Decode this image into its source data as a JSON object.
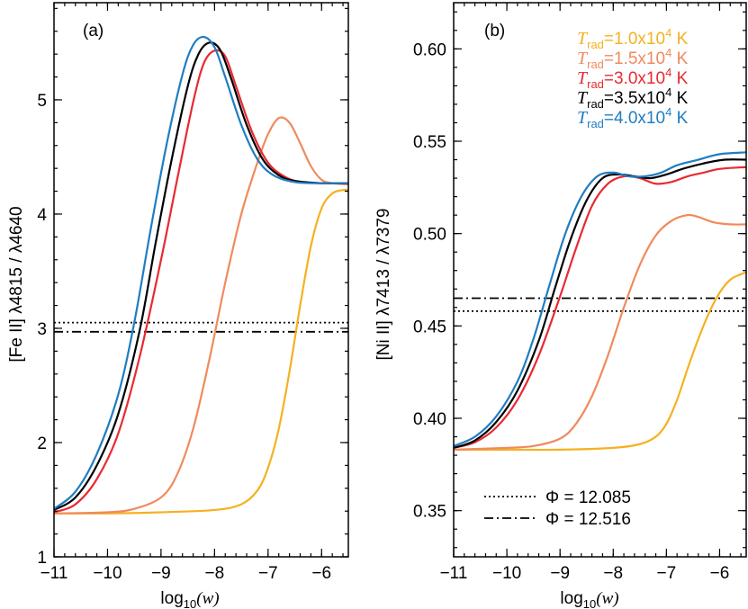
{
  "chart_data": [
    {
      "type": "line",
      "panel_label": "(a)",
      "xlabel_prefix": "log",
      "xlabel_sub": "10",
      "xlabel_arg": "(w)",
      "ylabel": "[Fe II] λ4815 / λ4640",
      "xlim": [
        -11,
        -5.5
      ],
      "ylim": [
        1,
        5.85
      ],
      "xticks": [
        -11,
        -10,
        -9,
        -8,
        -7,
        -6
      ],
      "xtick_labels": [
        "−11",
        "−10",
        "−9",
        "−8",
        "−7",
        "−6"
      ],
      "yticks": [
        1,
        2,
        3,
        4,
        5
      ],
      "ytick_labels": [
        "1",
        "2",
        "3",
        "4",
        "5"
      ],
      "hlines": [
        {
          "style": "dotted",
          "y": 3.05
        },
        {
          "style": "dashdot",
          "y": 2.97
        }
      ],
      "series": [
        {
          "color": "#f5b120",
          "points": [
            [
              -11,
              1.38
            ],
            [
              -10,
              1.38
            ],
            [
              -9,
              1.39
            ],
            [
              -8,
              1.41
            ],
            [
              -7.5,
              1.46
            ],
            [
              -7.2,
              1.58
            ],
            [
              -7,
              1.78
            ],
            [
              -6.8,
              2.12
            ],
            [
              -6.6,
              2.62
            ],
            [
              -6.4,
              3.2
            ],
            [
              -6.2,
              3.72
            ],
            [
              -6,
              4.05
            ],
            [
              -5.8,
              4.18
            ],
            [
              -5.6,
              4.21
            ],
            [
              -5.5,
              4.21
            ]
          ]
        },
        {
          "color": "#f08a5d",
          "points": [
            [
              -11,
              1.38
            ],
            [
              -10,
              1.39
            ],
            [
              -9.5,
              1.42
            ],
            [
              -9,
              1.52
            ],
            [
              -8.7,
              1.72
            ],
            [
              -8.4,
              2.12
            ],
            [
              -8.1,
              2.72
            ],
            [
              -7.8,
              3.4
            ],
            [
              -7.5,
              4.0
            ],
            [
              -7.2,
              4.45
            ],
            [
              -7.0,
              4.7
            ],
            [
              -6.8,
              4.84
            ],
            [
              -6.6,
              4.8
            ],
            [
              -6.4,
              4.62
            ],
            [
              -6.2,
              4.42
            ],
            [
              -6.0,
              4.3
            ],
            [
              -5.8,
              4.27
            ],
            [
              -5.5,
              4.26
            ]
          ]
        },
        {
          "color": "#e82a32",
          "points": [
            [
              -11,
              1.39
            ],
            [
              -10.6,
              1.46
            ],
            [
              -10.2,
              1.68
            ],
            [
              -9.8,
              2.08
            ],
            [
              -9.4,
              2.75
            ],
            [
              -9.0,
              3.6
            ],
            [
              -8.7,
              4.3
            ],
            [
              -8.4,
              4.98
            ],
            [
              -8.2,
              5.32
            ],
            [
              -8.0,
              5.43
            ],
            [
              -7.8,
              5.38
            ],
            [
              -7.6,
              5.12
            ],
            [
              -7.3,
              4.72
            ],
            [
              -7.0,
              4.45
            ],
            [
              -6.7,
              4.33
            ],
            [
              -6.4,
              4.28
            ],
            [
              -6,
              4.27
            ],
            [
              -5.5,
              4.27
            ]
          ]
        },
        {
          "color": "#000000",
          "points": [
            [
              -11,
              1.41
            ],
            [
              -10.6,
              1.52
            ],
            [
              -10.2,
              1.8
            ],
            [
              -9.8,
              2.25
            ],
            [
              -9.4,
              2.98
            ],
            [
              -9.1,
              3.75
            ],
            [
              -8.8,
              4.48
            ],
            [
              -8.5,
              5.12
            ],
            [
              -8.3,
              5.4
            ],
            [
              -8.1,
              5.5
            ],
            [
              -7.9,
              5.44
            ],
            [
              -7.7,
              5.2
            ],
            [
              -7.4,
              4.78
            ],
            [
              -7.1,
              4.48
            ],
            [
              -6.8,
              4.34
            ],
            [
              -6.5,
              4.29
            ],
            [
              -6,
              4.27
            ],
            [
              -5.5,
              4.27
            ]
          ]
        },
        {
          "color": "#1f7dc1",
          "points": [
            [
              -11,
              1.42
            ],
            [
              -10.6,
              1.57
            ],
            [
              -10.2,
              1.9
            ],
            [
              -9.8,
              2.42
            ],
            [
              -9.5,
              3.05
            ],
            [
              -9.2,
              3.85
            ],
            [
              -8.9,
              4.6
            ],
            [
              -8.6,
              5.22
            ],
            [
              -8.4,
              5.48
            ],
            [
              -8.2,
              5.55
            ],
            [
              -8.0,
              5.46
            ],
            [
              -7.8,
              5.2
            ],
            [
              -7.5,
              4.78
            ],
            [
              -7.2,
              4.48
            ],
            [
              -6.9,
              4.34
            ],
            [
              -6.5,
              4.28
            ],
            [
              -6,
              4.27
            ],
            [
              -5.5,
              4.27
            ]
          ]
        }
      ]
    },
    {
      "type": "line",
      "panel_label": "(b)",
      "xlabel_prefix": "log",
      "xlabel_sub": "10",
      "xlabel_arg": "(w)",
      "ylabel": "[Ni II] λ7413 / λ7379",
      "xlim": [
        -11,
        -5.5
      ],
      "ylim": [
        0.325,
        0.625
      ],
      "xticks": [
        -11,
        -10,
        -9,
        -8,
        -7,
        -6
      ],
      "xtick_labels": [
        "−11",
        "−10",
        "−9",
        "−8",
        "−7",
        "−6"
      ],
      "yticks": [
        0.35,
        0.4,
        0.45,
        0.5,
        0.55,
        0.6
      ],
      "ytick_labels": [
        "0.35",
        "0.40",
        "0.45",
        "0.50",
        "0.55",
        "0.60"
      ],
      "hlines": [
        {
          "style": "dotted",
          "y": 0.458
        },
        {
          "style": "dashdot",
          "y": 0.465
        }
      ],
      "series": [
        {
          "color": "#f5b120",
          "points": [
            [
              -11,
              0.383
            ],
            [
              -10,
              0.383
            ],
            [
              -9,
              0.383
            ],
            [
              -8,
              0.384
            ],
            [
              -7.5,
              0.386
            ],
            [
              -7.2,
              0.39
            ],
            [
              -7.0,
              0.397
            ],
            [
              -6.8,
              0.41
            ],
            [
              -6.6,
              0.427
            ],
            [
              -6.4,
              0.443
            ],
            [
              -6.2,
              0.457
            ],
            [
              -6.0,
              0.468
            ],
            [
              -5.8,
              0.475
            ],
            [
              -5.6,
              0.478
            ],
            [
              -5.5,
              0.479
            ]
          ]
        },
        {
          "color": "#f08a5d",
          "points": [
            [
              -11,
              0.383
            ],
            [
              -10,
              0.384
            ],
            [
              -9.5,
              0.385
            ],
            [
              -9,
              0.389
            ],
            [
              -8.7,
              0.397
            ],
            [
              -8.4,
              0.412
            ],
            [
              -8.1,
              0.434
            ],
            [
              -7.8,
              0.46
            ],
            [
              -7.5,
              0.483
            ],
            [
              -7.2,
              0.499
            ],
            [
              -6.9,
              0.507
            ],
            [
              -6.6,
              0.51
            ],
            [
              -6.4,
              0.509
            ],
            [
              -6.1,
              0.506
            ],
            [
              -5.8,
              0.505
            ],
            [
              -5.5,
              0.505
            ]
          ]
        },
        {
          "color": "#e82a32",
          "points": [
            [
              -11,
              0.384
            ],
            [
              -10.6,
              0.387
            ],
            [
              -10.2,
              0.395
            ],
            [
              -9.8,
              0.41
            ],
            [
              -9.4,
              0.434
            ],
            [
              -9.0,
              0.466
            ],
            [
              -8.7,
              0.492
            ],
            [
              -8.4,
              0.515
            ],
            [
              -8.1,
              0.527
            ],
            [
              -7.8,
              0.531
            ],
            [
              -7.5,
              0.53
            ],
            [
              -7.2,
              0.527
            ],
            [
              -6.9,
              0.528
            ],
            [
              -6.6,
              0.531
            ],
            [
              -6.3,
              0.533
            ],
            [
              -6.0,
              0.535
            ],
            [
              -5.5,
              0.536
            ]
          ]
        },
        {
          "color": "#000000",
          "points": [
            [
              -11,
              0.384
            ],
            [
              -10.6,
              0.388
            ],
            [
              -10.2,
              0.398
            ],
            [
              -9.8,
              0.415
            ],
            [
              -9.4,
              0.442
            ],
            [
              -9.1,
              0.47
            ],
            [
              -8.8,
              0.497
            ],
            [
              -8.5,
              0.518
            ],
            [
              -8.2,
              0.53
            ],
            [
              -7.9,
              0.532
            ],
            [
              -7.6,
              0.531
            ],
            [
              -7.3,
              0.53
            ],
            [
              -7.0,
              0.532
            ],
            [
              -6.7,
              0.535
            ],
            [
              -6.3,
              0.538
            ],
            [
              -5.9,
              0.54
            ],
            [
              -5.5,
              0.54
            ]
          ]
        },
        {
          "color": "#1f7dc1",
          "points": [
            [
              -11,
              0.385
            ],
            [
              -10.6,
              0.39
            ],
            [
              -10.2,
              0.401
            ],
            [
              -9.8,
              0.42
            ],
            [
              -9.5,
              0.443
            ],
            [
              -9.2,
              0.472
            ],
            [
              -8.9,
              0.5
            ],
            [
              -8.6,
              0.52
            ],
            [
              -8.3,
              0.531
            ],
            [
              -8.0,
              0.533
            ],
            [
              -7.7,
              0.531
            ],
            [
              -7.4,
              0.531
            ],
            [
              -7.1,
              0.533
            ],
            [
              -6.8,
              0.537
            ],
            [
              -6.4,
              0.54
            ],
            [
              -6.0,
              0.543
            ],
            [
              -5.5,
              0.544
            ]
          ]
        }
      ],
      "legend_temps": [
        {
          "color": "#f5b120",
          "T": "T",
          "sub": "rad",
          "text": "=1.0x10",
          "exp": "4",
          "unit": " K"
        },
        {
          "color": "#f08a5d",
          "T": "T",
          "sub": "rad",
          "text": "=1.5x10",
          "exp": "4",
          "unit": " K"
        },
        {
          "color": "#e82a32",
          "T": "T",
          "sub": "rad",
          "text": "=3.0x10",
          "exp": "4",
          "unit": " K"
        },
        {
          "color": "#000000",
          "T": "T",
          "sub": "rad",
          "text": "=3.5x10",
          "exp": "4",
          "unit": " K"
        },
        {
          "color": "#1f7dc1",
          "T": "T",
          "sub": "rad",
          "text": "=4.0x10",
          "exp": "4",
          "unit": " K"
        }
      ],
      "legend_phi": [
        {
          "style": "dotted",
          "label": "Φ = 12.085"
        },
        {
          "style": "dashdot",
          "label": "Φ = 12.516"
        }
      ]
    }
  ]
}
